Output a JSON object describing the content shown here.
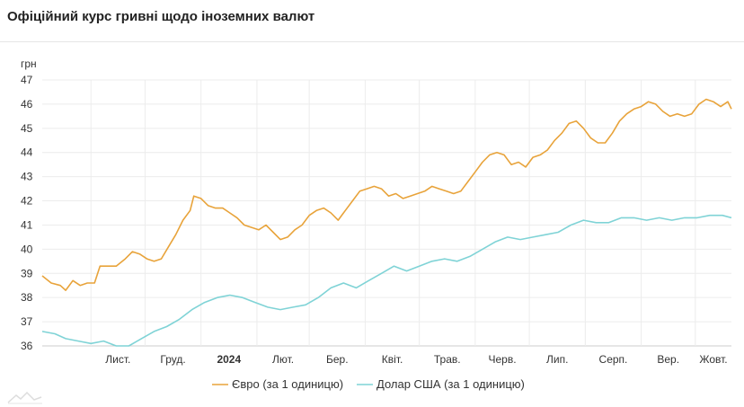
{
  "title": "Офіційний курс гривні щодо іноземних валют",
  "chart_data": {
    "type": "line",
    "y_unit_label": "грн",
    "ylim": [
      36,
      47
    ],
    "y_ticks": [
      36,
      37,
      38,
      39,
      40,
      41,
      42,
      43,
      44,
      45,
      46,
      47
    ],
    "grid": true,
    "legend_position": "bottom-center",
    "x_range": [
      "2023-10-05",
      "2024-10-21"
    ],
    "x_ticks": [
      {
        "date": "2023-11-01",
        "label": "Лист.",
        "bold": false
      },
      {
        "date": "2023-12-01",
        "label": "Груд.",
        "bold": false
      },
      {
        "date": "2024-01-01",
        "label": "2024",
        "bold": true
      },
      {
        "date": "2024-02-01",
        "label": "Лют.",
        "bold": false
      },
      {
        "date": "2024-03-01",
        "label": "Бер.",
        "bold": false
      },
      {
        "date": "2024-04-01",
        "label": "Квіт.",
        "bold": false
      },
      {
        "date": "2024-05-01",
        "label": "Трав.",
        "bold": false
      },
      {
        "date": "2024-06-01",
        "label": "Черв.",
        "bold": false
      },
      {
        "date": "2024-07-01",
        "label": "Лип.",
        "bold": false
      },
      {
        "date": "2024-08-01",
        "label": "Серп.",
        "bold": false
      },
      {
        "date": "2024-09-01",
        "label": "Вер.",
        "bold": false
      },
      {
        "date": "2024-10-01",
        "label": "Жовт.",
        "bold": false
      }
    ],
    "series": [
      {
        "name": "Євро (за 1 одиницю)",
        "color": "#e8a33a",
        "points": [
          [
            "2023-10-05",
            38.9
          ],
          [
            "2023-10-10",
            38.6
          ],
          [
            "2023-10-15",
            38.5
          ],
          [
            "2023-10-18",
            38.3
          ],
          [
            "2023-10-22",
            38.7
          ],
          [
            "2023-10-26",
            38.5
          ],
          [
            "2023-10-30",
            38.6
          ],
          [
            "2023-11-03",
            38.6
          ],
          [
            "2023-11-06",
            39.3
          ],
          [
            "2023-11-10",
            39.3
          ],
          [
            "2023-11-15",
            39.3
          ],
          [
            "2023-11-20",
            39.6
          ],
          [
            "2023-11-24",
            39.9
          ],
          [
            "2023-11-28",
            39.8
          ],
          [
            "2023-12-02",
            39.6
          ],
          [
            "2023-12-06",
            39.5
          ],
          [
            "2023-12-10",
            39.6
          ],
          [
            "2023-12-14",
            40.1
          ],
          [
            "2023-12-18",
            40.6
          ],
          [
            "2023-12-22",
            41.2
          ],
          [
            "2023-12-26",
            41.6
          ],
          [
            "2023-12-28",
            42.2
          ],
          [
            "2024-01-01",
            42.1
          ],
          [
            "2024-01-05",
            41.8
          ],
          [
            "2024-01-09",
            41.7
          ],
          [
            "2024-01-13",
            41.7
          ],
          [
            "2024-01-17",
            41.5
          ],
          [
            "2024-01-21",
            41.3
          ],
          [
            "2024-01-25",
            41.0
          ],
          [
            "2024-01-29",
            40.9
          ],
          [
            "2024-02-02",
            40.8
          ],
          [
            "2024-02-06",
            41.0
          ],
          [
            "2024-02-10",
            40.7
          ],
          [
            "2024-02-14",
            40.4
          ],
          [
            "2024-02-18",
            40.5
          ],
          [
            "2024-02-22",
            40.8
          ],
          [
            "2024-02-26",
            41.0
          ],
          [
            "2024-03-01",
            41.4
          ],
          [
            "2024-03-05",
            41.6
          ],
          [
            "2024-03-09",
            41.7
          ],
          [
            "2024-03-13",
            41.5
          ],
          [
            "2024-03-17",
            41.2
          ],
          [
            "2024-03-21",
            41.6
          ],
          [
            "2024-03-25",
            42.0
          ],
          [
            "2024-03-29",
            42.4
          ],
          [
            "2024-04-02",
            42.5
          ],
          [
            "2024-04-06",
            42.6
          ],
          [
            "2024-04-10",
            42.5
          ],
          [
            "2024-04-14",
            42.2
          ],
          [
            "2024-04-18",
            42.3
          ],
          [
            "2024-04-22",
            42.1
          ],
          [
            "2024-04-26",
            42.2
          ],
          [
            "2024-04-30",
            42.3
          ],
          [
            "2024-05-04",
            42.4
          ],
          [
            "2024-05-08",
            42.6
          ],
          [
            "2024-05-12",
            42.5
          ],
          [
            "2024-05-16",
            42.4
          ],
          [
            "2024-05-20",
            42.3
          ],
          [
            "2024-05-24",
            42.4
          ],
          [
            "2024-05-28",
            42.8
          ],
          [
            "2024-06-01",
            43.2
          ],
          [
            "2024-06-05",
            43.6
          ],
          [
            "2024-06-09",
            43.9
          ],
          [
            "2024-06-13",
            44.0
          ],
          [
            "2024-06-17",
            43.9
          ],
          [
            "2024-06-21",
            43.5
          ],
          [
            "2024-06-25",
            43.6
          ],
          [
            "2024-06-29",
            43.4
          ],
          [
            "2024-07-03",
            43.8
          ],
          [
            "2024-07-07",
            43.9
          ],
          [
            "2024-07-11",
            44.1
          ],
          [
            "2024-07-15",
            44.5
          ],
          [
            "2024-07-19",
            44.8
          ],
          [
            "2024-07-23",
            45.2
          ],
          [
            "2024-07-27",
            45.3
          ],
          [
            "2024-07-31",
            45.0
          ],
          [
            "2024-08-04",
            44.6
          ],
          [
            "2024-08-08",
            44.4
          ],
          [
            "2024-08-12",
            44.4
          ],
          [
            "2024-08-16",
            44.8
          ],
          [
            "2024-08-20",
            45.3
          ],
          [
            "2024-08-24",
            45.6
          ],
          [
            "2024-08-28",
            45.8
          ],
          [
            "2024-09-01",
            45.9
          ],
          [
            "2024-09-05",
            46.1
          ],
          [
            "2024-09-09",
            46.0
          ],
          [
            "2024-09-13",
            45.7
          ],
          [
            "2024-09-17",
            45.5
          ],
          [
            "2024-09-21",
            45.6
          ],
          [
            "2024-09-25",
            45.5
          ],
          [
            "2024-09-29",
            45.6
          ],
          [
            "2024-10-03",
            46.0
          ],
          [
            "2024-10-07",
            46.2
          ],
          [
            "2024-10-11",
            46.1
          ],
          [
            "2024-10-15",
            45.9
          ],
          [
            "2024-10-19",
            46.1
          ],
          [
            "2024-10-21",
            45.8
          ]
        ]
      },
      {
        "name": "Долар США (за 1 одиницю)",
        "color": "#7fd3d6",
        "points": [
          [
            "2023-10-05",
            36.6
          ],
          [
            "2023-10-12",
            36.5
          ],
          [
            "2023-10-18",
            36.3
          ],
          [
            "2023-10-25",
            36.2
          ],
          [
            "2023-11-01",
            36.1
          ],
          [
            "2023-11-08",
            36.2
          ],
          [
            "2023-11-15",
            36.0
          ],
          [
            "2023-11-22",
            36.0
          ],
          [
            "2023-11-29",
            36.3
          ],
          [
            "2023-12-06",
            36.6
          ],
          [
            "2023-12-13",
            36.8
          ],
          [
            "2023-12-20",
            37.1
          ],
          [
            "2023-12-27",
            37.5
          ],
          [
            "2024-01-03",
            37.8
          ],
          [
            "2024-01-10",
            38.0
          ],
          [
            "2024-01-17",
            38.1
          ],
          [
            "2024-01-24",
            38.0
          ],
          [
            "2024-01-31",
            37.8
          ],
          [
            "2024-02-07",
            37.6
          ],
          [
            "2024-02-14",
            37.5
          ],
          [
            "2024-02-21",
            37.6
          ],
          [
            "2024-02-28",
            37.7
          ],
          [
            "2024-03-06",
            38.0
          ],
          [
            "2024-03-13",
            38.4
          ],
          [
            "2024-03-20",
            38.6
          ],
          [
            "2024-03-27",
            38.4
          ],
          [
            "2024-04-03",
            38.7
          ],
          [
            "2024-04-10",
            39.0
          ],
          [
            "2024-04-17",
            39.3
          ],
          [
            "2024-04-24",
            39.1
          ],
          [
            "2024-05-01",
            39.3
          ],
          [
            "2024-05-08",
            39.5
          ],
          [
            "2024-05-15",
            39.6
          ],
          [
            "2024-05-22",
            39.5
          ],
          [
            "2024-05-29",
            39.7
          ],
          [
            "2024-06-05",
            40.0
          ],
          [
            "2024-06-12",
            40.3
          ],
          [
            "2024-06-19",
            40.5
          ],
          [
            "2024-06-26",
            40.4
          ],
          [
            "2024-07-03",
            40.5
          ],
          [
            "2024-07-10",
            40.6
          ],
          [
            "2024-07-17",
            40.7
          ],
          [
            "2024-07-24",
            41.0
          ],
          [
            "2024-07-31",
            41.2
          ],
          [
            "2024-08-07",
            41.1
          ],
          [
            "2024-08-14",
            41.1
          ],
          [
            "2024-08-21",
            41.3
          ],
          [
            "2024-08-28",
            41.3
          ],
          [
            "2024-09-04",
            41.2
          ],
          [
            "2024-09-11",
            41.3
          ],
          [
            "2024-09-18",
            41.2
          ],
          [
            "2024-09-25",
            41.3
          ],
          [
            "2024-10-02",
            41.3
          ],
          [
            "2024-10-09",
            41.4
          ],
          [
            "2024-10-16",
            41.4
          ],
          [
            "2024-10-21",
            41.3
          ]
        ]
      }
    ]
  }
}
